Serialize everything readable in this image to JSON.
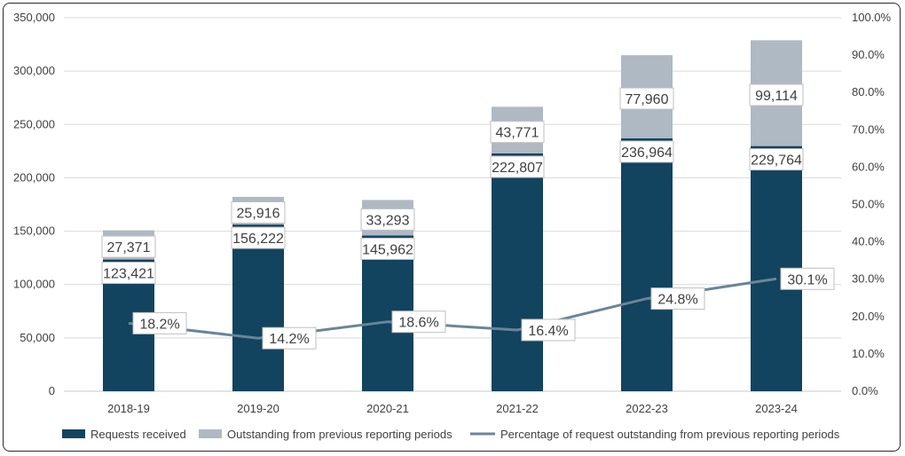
{
  "chart_data": {
    "type": "bar",
    "stacked": true,
    "categories": [
      "2018-19",
      "2019-20",
      "2020-21",
      "2021-22",
      "2022-23",
      "2023-24"
    ],
    "series": [
      {
        "name": "Requests received",
        "type": "bar",
        "axis": "left",
        "color": "#12435f",
        "values": [
          123421,
          156222,
          145962,
          222807,
          236964,
          229764
        ],
        "labels": [
          "123,421",
          "156,222",
          "145,962",
          "222,807",
          "236,964",
          "229,764"
        ]
      },
      {
        "name": "Outstanding from previous reporting periods",
        "type": "bar",
        "axis": "left",
        "color": "#aeb9c4",
        "values": [
          27371,
          25916,
          33293,
          43771,
          77960,
          99114
        ],
        "labels": [
          "27,371",
          "25,916",
          "33,293",
          "43,771",
          "77,960",
          "99,114"
        ]
      },
      {
        "name": "Percentage of request outstanding from previous reporting periods",
        "type": "line",
        "axis": "right",
        "color": "#6a8599",
        "values": [
          18.2,
          14.2,
          18.6,
          16.4,
          24.8,
          30.1
        ],
        "labels": [
          "18.2%",
          "14.2%",
          "18.6%",
          "16.4%",
          "24.8%",
          "30.1%"
        ]
      }
    ],
    "ylim": [
      0,
      350000
    ],
    "y_ticks": [
      "0",
      "50,000",
      "100,000",
      "150,000",
      "200,000",
      "250,000",
      "300,000",
      "350,000"
    ],
    "y2lim": [
      0,
      100
    ],
    "y2_ticks": [
      "0.0%",
      "10.0%",
      "20.0%",
      "30.0%",
      "40.0%",
      "50.0%",
      "60.0%",
      "70.0%",
      "80.0%",
      "90.0%",
      "100.0%"
    ],
    "title": "",
    "xlabel": "",
    "ylabel": "",
    "grid": true,
    "legend": "bottom"
  }
}
